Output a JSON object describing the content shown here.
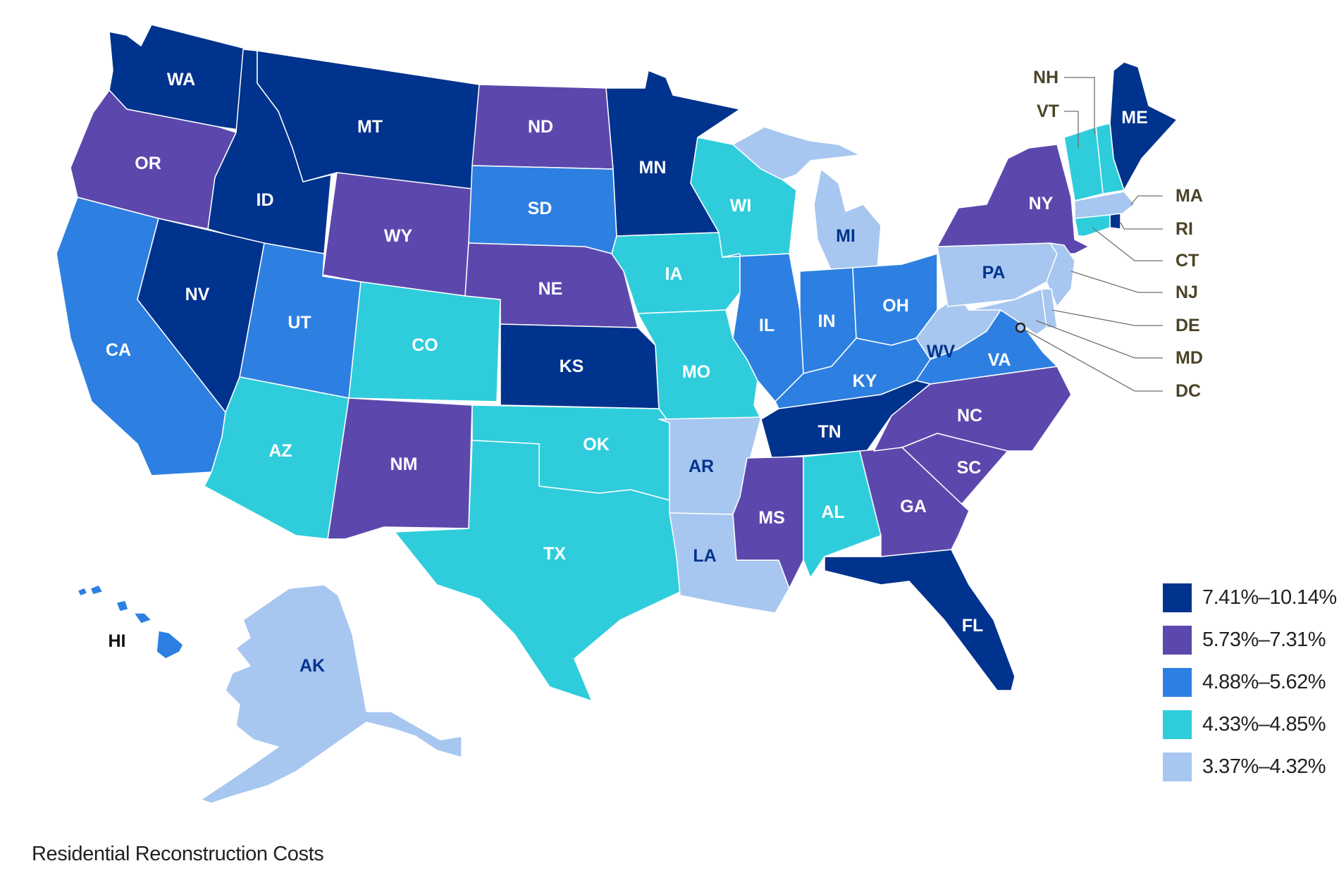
{
  "caption": "Residential Reconstruction Costs",
  "colors": {
    "c1": "#00338d",
    "c2": "#5c48ad",
    "c3": "#2d80e1",
    "c4": "#2fcddc",
    "c5": "#a7c7f0",
    "label_dark": "#00338d",
    "label_light": "#ffffff",
    "callout_text": "#4a4327"
  },
  "legend": [
    {
      "range": "7.41%–10.14%",
      "color": "#00338d"
    },
    {
      "range": "5.73%–7.31%",
      "color": "#5c48ad"
    },
    {
      "range": "4.88%–5.62%",
      "color": "#2d80e1"
    },
    {
      "range": "4.33%–4.85%",
      "color": "#2fcddc"
    },
    {
      "range": "3.37%–4.32%",
      "color": "#a7c7f0"
    }
  ],
  "states": [
    {
      "abbr": "WA",
      "range": "7.41%–10.14%"
    },
    {
      "abbr": "OR",
      "range": "5.73%–7.31%"
    },
    {
      "abbr": "CA",
      "range": "4.88%–5.62%"
    },
    {
      "abbr": "ID",
      "range": "7.41%–10.14%"
    },
    {
      "abbr": "NV",
      "range": "7.41%–10.14%"
    },
    {
      "abbr": "MT",
      "range": "7.41%–10.14%"
    },
    {
      "abbr": "WY",
      "range": "5.73%–7.31%"
    },
    {
      "abbr": "UT",
      "range": "4.88%–5.62%"
    },
    {
      "abbr": "AZ",
      "range": "4.33%–4.85%"
    },
    {
      "abbr": "CO",
      "range": "4.33%–4.85%"
    },
    {
      "abbr": "NM",
      "range": "5.73%–7.31%"
    },
    {
      "abbr": "ND",
      "range": "5.73%–7.31%"
    },
    {
      "abbr": "SD",
      "range": "4.88%–5.62%"
    },
    {
      "abbr": "NE",
      "range": "5.73%–7.31%"
    },
    {
      "abbr": "KS",
      "range": "7.41%–10.14%"
    },
    {
      "abbr": "OK",
      "range": "4.33%–4.85%"
    },
    {
      "abbr": "TX",
      "range": "4.33%–4.85%"
    },
    {
      "abbr": "MN",
      "range": "7.41%–10.14%"
    },
    {
      "abbr": "IA",
      "range": "4.33%–4.85%"
    },
    {
      "abbr": "MO",
      "range": "4.33%–4.85%"
    },
    {
      "abbr": "AR",
      "range": "3.37%–4.32%"
    },
    {
      "abbr": "LA",
      "range": "3.37%–4.32%"
    },
    {
      "abbr": "WI",
      "range": "4.33%–4.85%"
    },
    {
      "abbr": "IL",
      "range": "4.88%–5.62%"
    },
    {
      "abbr": "MI",
      "range": "3.37%–4.32%"
    },
    {
      "abbr": "IN",
      "range": "4.88%–5.62%"
    },
    {
      "abbr": "OH",
      "range": "4.88%–5.62%"
    },
    {
      "abbr": "KY",
      "range": "4.88%–5.62%"
    },
    {
      "abbr": "TN",
      "range": "7.41%–10.14%"
    },
    {
      "abbr": "MS",
      "range": "5.73%–7.31%"
    },
    {
      "abbr": "AL",
      "range": "4.33%–4.85%"
    },
    {
      "abbr": "GA",
      "range": "5.73%–7.31%"
    },
    {
      "abbr": "FL",
      "range": "7.41%–10.14%"
    },
    {
      "abbr": "SC",
      "range": "5.73%–7.31%"
    },
    {
      "abbr": "NC",
      "range": "5.73%–7.31%"
    },
    {
      "abbr": "VA",
      "range": "4.88%–5.62%"
    },
    {
      "abbr": "WV",
      "range": "3.37%–4.32%"
    },
    {
      "abbr": "PA",
      "range": "3.37%–4.32%"
    },
    {
      "abbr": "NY",
      "range": "5.73%–7.31%"
    },
    {
      "abbr": "ME",
      "range": "7.41%–10.14%"
    },
    {
      "abbr": "NH",
      "range": "4.33%–4.85%"
    },
    {
      "abbr": "VT",
      "range": "4.33%–4.85%"
    },
    {
      "abbr": "MA",
      "range": "3.37%–4.32%"
    },
    {
      "abbr": "RI",
      "range": "7.41%–10.14%"
    },
    {
      "abbr": "CT",
      "range": "4.33%–4.85%"
    },
    {
      "abbr": "NJ",
      "range": "3.37%–4.32%"
    },
    {
      "abbr": "DE",
      "range": "3.37%–4.32%"
    },
    {
      "abbr": "MD",
      "range": "3.37%–4.32%"
    },
    {
      "abbr": "DC",
      "range": "3.37%–4.32%"
    },
    {
      "abbr": "AK",
      "range": "3.37%–4.32%"
    },
    {
      "abbr": "HI",
      "range": "4.88%–5.62%"
    }
  ]
}
